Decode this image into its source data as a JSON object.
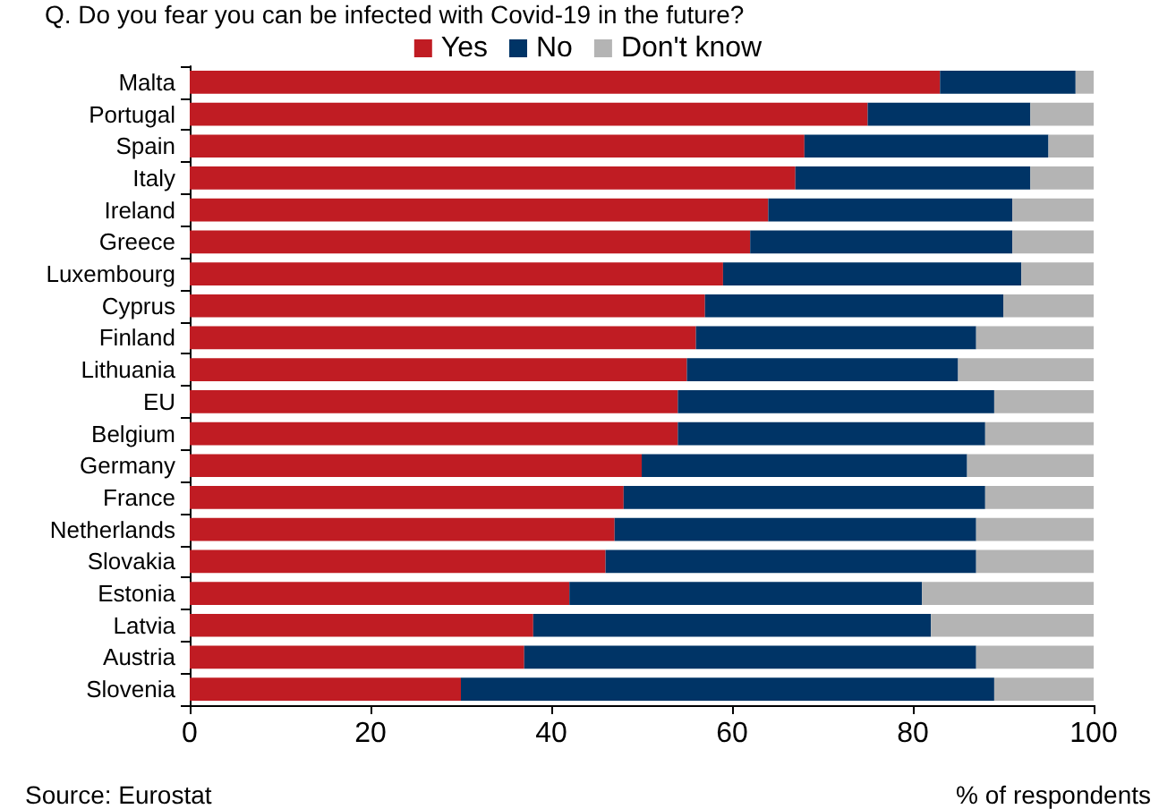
{
  "chart_data": {
    "type": "bar",
    "orientation": "horizontal",
    "stacked": true,
    "title": "Q. Do you fear you can be infected with Covid-19 in the future?",
    "xlabel": "% of respondents",
    "annotations": [
      "Source: Eurostat"
    ],
    "categories": [
      "Malta",
      "Portugal",
      "Spain",
      "Italy",
      "Ireland",
      "Greece",
      "Luxembourg",
      "Cyprus",
      "Finland",
      "Lithuania",
      "EU",
      "Belgium",
      "Germany",
      "France",
      "Netherlands",
      "Slovakia",
      "Estonia",
      "Latvia",
      "Austria",
      "Slovenia"
    ],
    "series": [
      {
        "name": "Yes",
        "color": "#c01c23",
        "values": [
          83,
          75,
          68,
          67,
          64,
          62,
          59,
          57,
          56,
          55,
          54,
          54,
          50,
          48,
          47,
          46,
          42,
          38,
          37,
          30
        ]
      },
      {
        "name": "No",
        "color": "#003466",
        "values": [
          15,
          18,
          27,
          26,
          27,
          29,
          33,
          33,
          31,
          30,
          35,
          34,
          36,
          40,
          40,
          41,
          39,
          44,
          50,
          59
        ]
      },
      {
        "name": "Don't know",
        "color": "#b4b4b4",
        "values": [
          2,
          7,
          5,
          7,
          9,
          9,
          8,
          10,
          13,
          15,
          11,
          12,
          14,
          12,
          13,
          13,
          19,
          18,
          13,
          11
        ]
      }
    ],
    "xlim": [
      0,
      100
    ],
    "xticks": [
      0,
      20,
      40,
      60,
      80,
      100
    ],
    "grid": false,
    "legend": "top"
  }
}
